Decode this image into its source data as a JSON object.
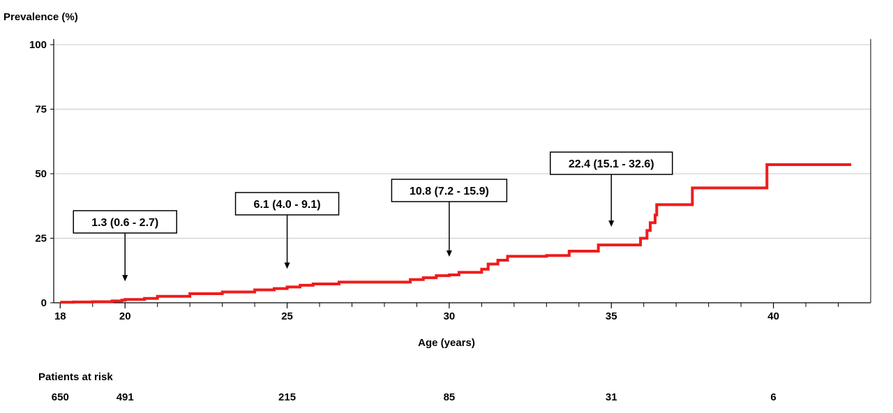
{
  "chart_data": {
    "type": "line",
    "ylabel": "Prevalence (%)",
    "xlabel": "Age (years)",
    "xlim": [
      17.8,
      43
    ],
    "ylim": [
      0,
      100
    ],
    "xticks_labeled": [
      18,
      20,
      25,
      30,
      35,
      40
    ],
    "xticks_minor": [
      19,
      21,
      22,
      23,
      24,
      26,
      27,
      28,
      29,
      31,
      32,
      33,
      34,
      36,
      37,
      38,
      39,
      41,
      42
    ],
    "yticks": [
      0,
      25,
      50,
      75,
      100
    ],
    "grid": "horizontal",
    "line_color": "#ee1c1c",
    "series": [
      {
        "step": [
          [
            18,
            0.2
          ],
          [
            18.4,
            0.3
          ],
          [
            19,
            0.4
          ],
          [
            19.6,
            0.7
          ],
          [
            19.9,
            1.0
          ],
          [
            20,
            1.3
          ],
          [
            20.6,
            1.7
          ],
          [
            21,
            2.5
          ],
          [
            22,
            3.5
          ],
          [
            23,
            4.2
          ],
          [
            24,
            5.0
          ],
          [
            24.6,
            5.5
          ],
          [
            25,
            6.1
          ],
          [
            25.4,
            6.8
          ],
          [
            25.8,
            7.3
          ],
          [
            26.6,
            8.0
          ],
          [
            28.8,
            9.0
          ],
          [
            29.2,
            9.7
          ],
          [
            29.6,
            10.5
          ],
          [
            30,
            10.8
          ],
          [
            30.3,
            11.8
          ],
          [
            31,
            13.0
          ],
          [
            31.2,
            15.0
          ],
          [
            31.5,
            16.5
          ],
          [
            31.8,
            18.0
          ],
          [
            33,
            18.3
          ],
          [
            33.7,
            20.0
          ],
          [
            34.6,
            22.4
          ],
          [
            35.9,
            25.0
          ],
          [
            36.1,
            28.0
          ],
          [
            36.2,
            31.0
          ],
          [
            36.35,
            34.0
          ],
          [
            36.4,
            38.0
          ],
          [
            37.5,
            44.5
          ],
          [
            39.8,
            53.5
          ]
        ],
        "end_x": 42.4
      }
    ],
    "annotations": [
      {
        "label": "1.3 (0.6 - 2.7)",
        "x": 20,
        "y": 1.3
      },
      {
        "label": "6.1 (4.0 - 9.1)",
        "x": 25,
        "y": 6.1
      },
      {
        "label": "10.8 (7.2 - 15.9)",
        "x": 30,
        "y": 10.8
      },
      {
        "label": "22.4 (15.1 - 32.6)",
        "x": 35,
        "y": 22.4
      }
    ],
    "risk_table": {
      "title": "Patients at risk",
      "entries": [
        {
          "x": 18,
          "value": "650"
        },
        {
          "x": 20,
          "value": "491"
        },
        {
          "x": 25,
          "value": "215"
        },
        {
          "x": 30,
          "value": "85"
        },
        {
          "x": 35,
          "value": "31"
        },
        {
          "x": 40,
          "value": "6"
        }
      ]
    }
  }
}
